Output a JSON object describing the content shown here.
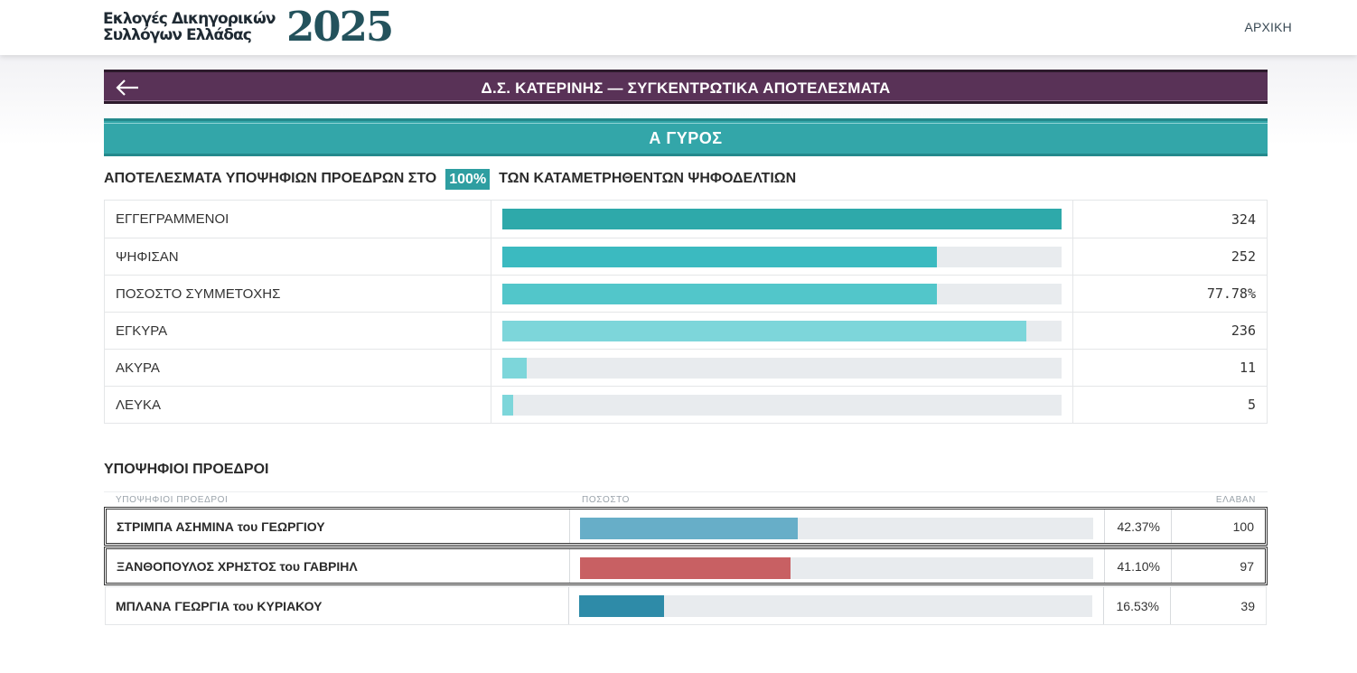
{
  "header": {
    "logo_line1": "Εκλογές Δικηγορικών",
    "logo_line2": "Συλλόγων Ελλάδας",
    "logo_year": "2025",
    "nav_home": "ΑΡΧΙΚΗ"
  },
  "title_bar": {
    "back_icon": "arrow-left-icon",
    "title": "Δ.Σ. ΚΑΤΕΡΙΝΗΣ —  ΣΥΓΚΕΝΤΡΩΤΙΚΑ ΑΠΟΤΕΛΕΣΜΑΤΑ"
  },
  "round": {
    "label": "Α ΓΥΡΟΣ"
  },
  "headline": {
    "before": "ΑΠΟΤΕΛΕΣΜΑΤΑ ΥΠΟΨΗΦΙΩΝ ΠΡΟΕΔΡΩΝ ΣΤΟ",
    "badge": "100%",
    "after": "ΤΩΝ ΚΑΤΑΜΕΤΡΗΘΕΝΤΩΝ ΨΗΦΟΔΕΛΤΙΩΝ"
  },
  "stats": [
    {
      "label": "ΕΓΓΕΓΡΑΜΜΕΝΟΙ",
      "value": "324",
      "fill": 1.0,
      "color": "#2ea9aa"
    },
    {
      "label": "ΨΗΦΙΣΑΝ",
      "value": "252",
      "fill": 0.7778,
      "color": "#3bbac0"
    },
    {
      "label": "ΠΟΣΟΣΤΟ ΣΥΜΜΕΤΟΧΗΣ",
      "value": "77.78%",
      "fill": 0.7778,
      "color": "#52c6ca"
    },
    {
      "label": "ΕΓΚΥΡΑ",
      "value": "236",
      "fill": 0.9365,
      "color": "#7dd6da"
    },
    {
      "label": "ΑΚΥΡΑ",
      "value": "11",
      "fill": 0.0437,
      "color": "#7dd6da"
    },
    {
      "label": "ΛΕΥΚΑ",
      "value": "5",
      "fill": 0.0198,
      "color": "#7dd6da"
    }
  ],
  "candidates_section": {
    "title": "ΥΠΟΨΗΦΙΟΙ ΠΡΟΕΔΡΟΙ",
    "col_name": "ΥΠΟΨΗΦΙΟΙ ΠΡΟΕΔΡΟΙ",
    "col_pct": "ΠΟΣΟΣΤΟ",
    "col_votes": "ΕΛΑΒΑΝ"
  },
  "candidates": [
    {
      "name": "ΣΤΡΙΜΠΑ ΑΣΗΜΙΝΑ του ΓΕΩΡΓΙΟΥ",
      "pct": "42.37%",
      "votes": "100",
      "fill": 0.4237,
      "color": "#67aec8",
      "boxed": true
    },
    {
      "name": "ΞΑΝΘΟΠΟΥΛΟΣ ΧΡΗΣΤΟΣ του ΓΑΒΡΙΗΛ",
      "pct": "41.10%",
      "votes": "97",
      "fill": 0.411,
      "color": "#c86063",
      "boxed": true
    },
    {
      "name": "ΜΠΛΑΝΑ ΓΕΩΡΓΙΑ του ΚΥΡΙΑΚΟΥ",
      "pct": "16.53%",
      "votes": "39",
      "fill": 0.1653,
      "color": "#2e8ba8",
      "boxed": false
    }
  ]
}
